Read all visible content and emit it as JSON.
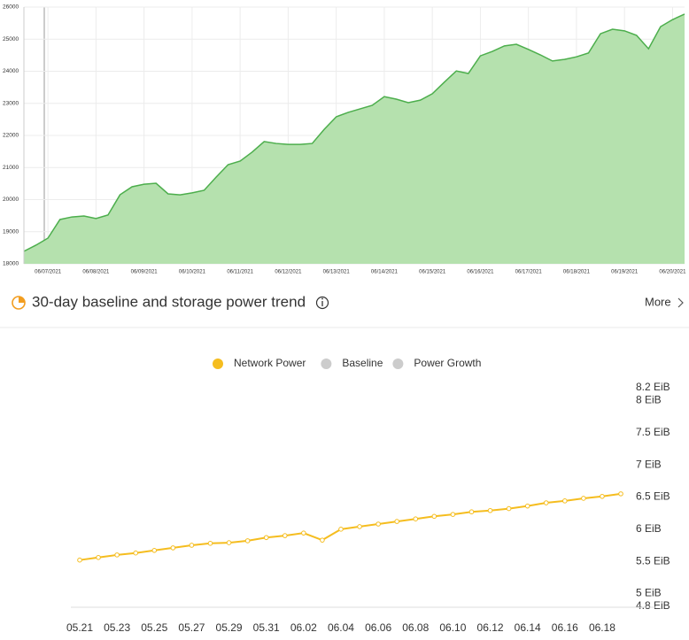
{
  "chart_data": [
    {
      "type": "area",
      "color": "#4cae4c",
      "fill": "#b5e1ae",
      "grid": true,
      "categories": [
        null,
        null,
        "06/07/2021",
        null,
        null,
        null,
        "06/08/2021",
        null,
        null,
        null,
        "06/09/2021",
        null,
        null,
        null,
        "06/10/2021",
        null,
        null,
        null,
        "06/11/2021",
        null,
        null,
        null,
        "06/12/2021",
        null,
        null,
        null,
        "06/13/2021",
        null,
        null,
        null,
        "06/14/2021",
        null,
        null,
        null,
        "06/15/2021",
        null,
        null,
        null,
        "06/16/2021",
        null,
        null,
        null,
        "06/17/2021",
        null,
        null,
        null,
        "06/18/2021",
        null,
        null,
        null,
        "06/19/2021",
        null,
        null,
        null,
        "06/20/2021",
        null
      ],
      "values": [
        18390,
        18580,
        18800,
        19380,
        19460,
        19490,
        19410,
        19520,
        20150,
        20400,
        20480,
        20510,
        20180,
        20150,
        20210,
        20290,
        20700,
        21090,
        21200,
        21480,
        21810,
        21750,
        21720,
        21720,
        21750,
        22190,
        22580,
        22720,
        22830,
        22940,
        23210,
        23130,
        23020,
        23100,
        23300,
        23660,
        24010,
        23930,
        24480,
        24620,
        24790,
        24840,
        24680,
        24510,
        24320,
        24370,
        24450,
        24570,
        25170,
        25310,
        25260,
        25120,
        24700,
        25390,
        25610,
        25780
      ],
      "ylim": [
        18000,
        26000
      ],
      "yticks": [
        18000,
        19000,
        20000,
        21000,
        22000,
        23000,
        24000,
        25000,
        26000
      ]
    },
    {
      "type": "line",
      "categories": [
        "05.21",
        null,
        "05.23",
        null,
        "05.25",
        null,
        "05.27",
        null,
        "05.29",
        null,
        "05.31",
        null,
        "06.02",
        null,
        "06.04",
        null,
        "06.06",
        null,
        "06.08",
        null,
        "06.10",
        null,
        "06.12",
        null,
        "06.14",
        null,
        "06.16",
        null,
        "06.18",
        null
      ],
      "series": [
        {
          "name": "Network Power",
          "color": "#f5bd1f",
          "values": [
            5.52,
            5.56,
            5.6,
            5.63,
            5.67,
            5.71,
            5.75,
            5.78,
            5.79,
            5.82,
            5.87,
            5.9,
            5.94,
            5.83,
            6.0,
            6.04,
            6.08,
            6.12,
            6.16,
            6.2,
            6.23,
            6.27,
            6.29,
            6.32,
            6.36,
            6.41,
            6.44,
            6.48,
            6.51,
            6.55
          ]
        }
      ],
      "legend_inactive": [
        {
          "name": "Baseline",
          "color": "#cccccc"
        },
        {
          "name": "Power Growth",
          "color": "#cccccc"
        }
      ],
      "ylim": [
        4.8,
        8.2
      ],
      "yticks": [
        {
          "value": 4.8,
          "label": "4.8 EiB"
        },
        {
          "value": 5,
          "label": "5 EiB"
        },
        {
          "value": 5.5,
          "label": "5.5 EiB"
        },
        {
          "value": 6,
          "label": "6 EiB"
        },
        {
          "value": 6.5,
          "label": "6.5 EiB"
        },
        {
          "value": 7,
          "label": "7 EiB"
        },
        {
          "value": 7.5,
          "label": "7.5 EiB"
        },
        {
          "value": 8,
          "label": "8 EiB"
        },
        {
          "value": 8.2,
          "label": "8.2 EiB"
        }
      ]
    }
  ],
  "section": {
    "title": "30-day baseline and storage power trend",
    "more": "More"
  }
}
